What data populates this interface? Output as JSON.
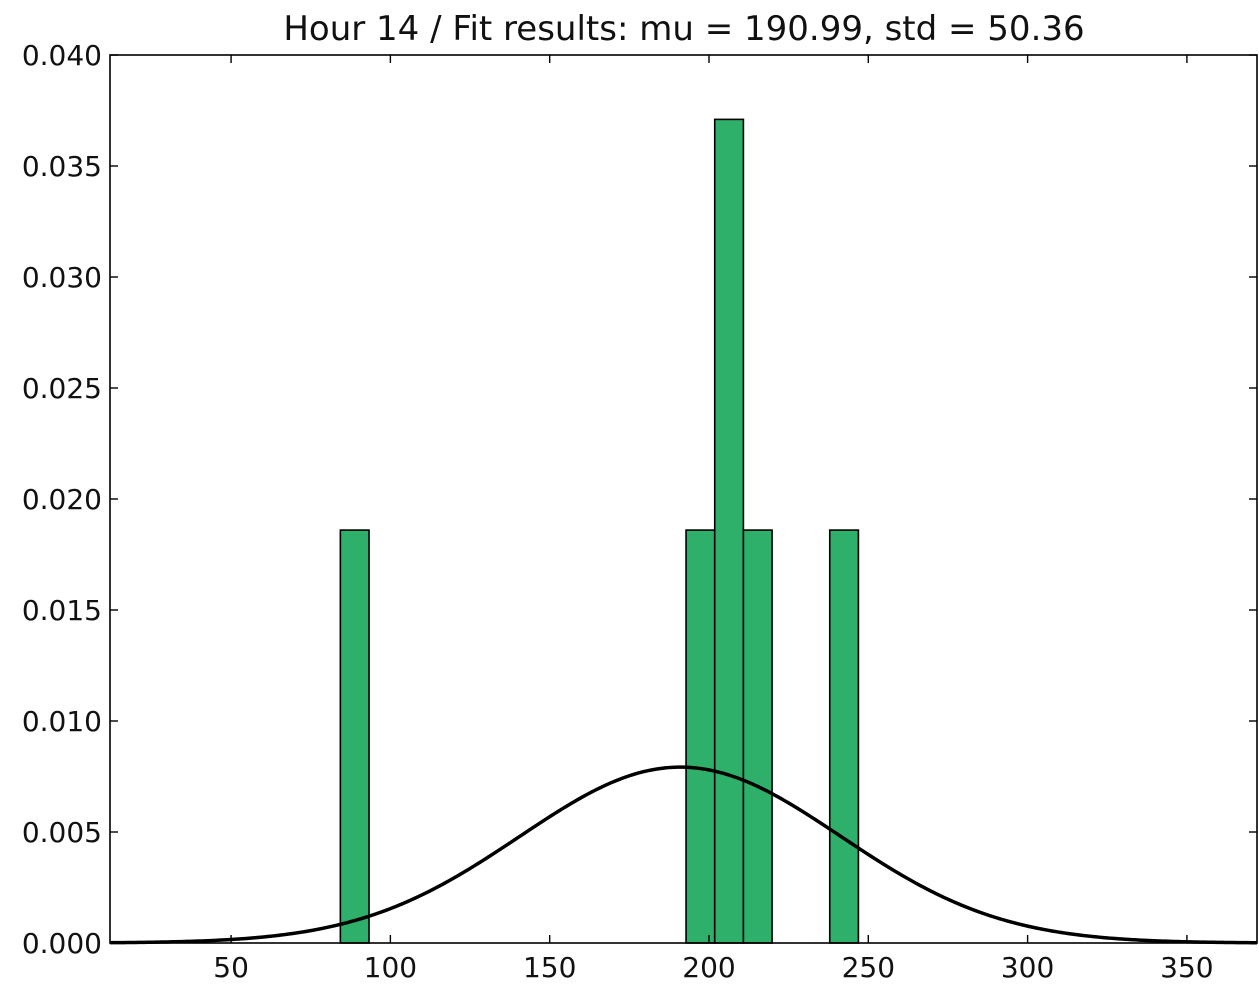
{
  "chart_data": {
    "type": "bar",
    "title": "Hour 14 / Fit results: mu = 190.99,  std = 50.36",
    "xlabel": "",
    "ylabel": "",
    "xlim": [
      12,
      372
    ],
    "ylim": [
      0,
      0.04
    ],
    "xticks": [
      50,
      100,
      150,
      200,
      250,
      300,
      350
    ],
    "yticks": [
      0.0,
      0.005,
      0.01,
      0.015,
      0.02,
      0.025,
      0.03,
      0.035,
      0.04
    ],
    "ytick_labels": [
      "0.000",
      "0.005",
      "0.010",
      "0.015",
      "0.020",
      "0.025",
      "0.030",
      "0.035",
      "0.040"
    ],
    "grid": false,
    "bar_color": "#2eb06a",
    "bar_edge_color": "#000000",
    "curve_color": "#000000",
    "bins": [
      {
        "x0": 84.3,
        "x1": 93.3,
        "value": 0.0186
      },
      {
        "x0": 192.8,
        "x1": 201.8,
        "value": 0.0186
      },
      {
        "x0": 201.8,
        "x1": 210.8,
        "value": 0.0371
      },
      {
        "x0": 210.8,
        "x1": 219.8,
        "value": 0.0186
      },
      {
        "x0": 237.9,
        "x1": 246.9,
        "value": 0.0186
      }
    ],
    "fit": {
      "distribution": "normal",
      "mu": 190.99,
      "std": 50.36
    }
  }
}
